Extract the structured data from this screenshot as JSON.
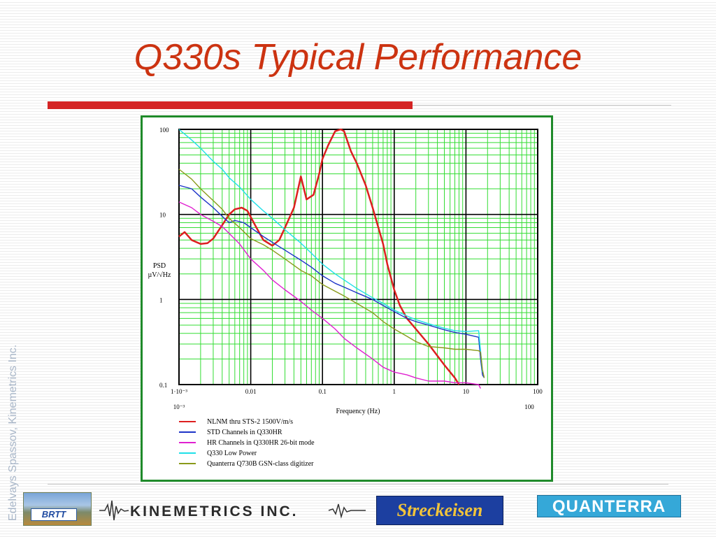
{
  "slide": {
    "title": "Q330s Typical Performance",
    "side_text": "Edelvays Spassov, Kinemetrics Inc."
  },
  "logos": {
    "brtt": "BRTT",
    "kinemetrics": "KINEMETRICS INC.",
    "streckeisen": "Streckeisen",
    "quanterra": "QUANTERRA"
  },
  "colors": {
    "title": "#cc3311",
    "frame": "#1f8a2a",
    "grid_minor": "#33dd33",
    "grid_major": "#000000"
  },
  "chart_data": {
    "type": "line",
    "xscale": "log",
    "yscale": "log",
    "xlim": [
      0.001,
      100
    ],
    "ylim": [
      0.1,
      100
    ],
    "grid": true,
    "xlabel": "Frequency (Hz)",
    "ylabel": "PSD\nµV/√Hz",
    "ytick_labels": [
      "100",
      "10",
      "1",
      "0.1"
    ],
    "xtick_labels": [
      "1·10⁻³",
      "0.01",
      "0.1",
      "1",
      "10",
      "100"
    ],
    "xtick_labels_below": [
      "10⁻³",
      "100"
    ],
    "legend_position": "bottom",
    "series": [
      {
        "name": "NLNM thru STS-2 1500V/m/s",
        "color": "#dd1f1f",
        "x": [
          0.001,
          0.0012,
          0.0015,
          0.002,
          0.0025,
          0.003,
          0.004,
          0.005,
          0.006,
          0.0075,
          0.009,
          0.012,
          0.015,
          0.02,
          0.025,
          0.03,
          0.04,
          0.05,
          0.06,
          0.075,
          0.09,
          0.1,
          0.12,
          0.15,
          0.18,
          0.2,
          0.22,
          0.25,
          0.3,
          0.4,
          0.5,
          0.7,
          0.8,
          1,
          1.2,
          1.5,
          2,
          3,
          5,
          7,
          8
        ],
        "y": [
          5.5,
          6.2,
          5.0,
          4.5,
          4.6,
          5.2,
          7.5,
          10.0,
          11.5,
          12.0,
          11.0,
          7.0,
          5.0,
          4.3,
          5.0,
          7.0,
          12.0,
          28.0,
          15.0,
          17.0,
          30.0,
          45.0,
          65.0,
          95.0,
          100.0,
          95.0,
          75.0,
          55.0,
          40.0,
          22.0,
          12.0,
          4.5,
          2.6,
          1.3,
          0.85,
          0.6,
          0.45,
          0.3,
          0.17,
          0.12,
          0.1
        ]
      },
      {
        "name": "STD Channels in Q330HR",
        "color": "#1d34c8",
        "x": [
          0.001,
          0.0015,
          0.002,
          0.003,
          0.004,
          0.005,
          0.006,
          0.008,
          0.01,
          0.015,
          0.02,
          0.03,
          0.05,
          0.07,
          0.1,
          0.15,
          0.2,
          0.3,
          0.5,
          0.7,
          1,
          1.5,
          2,
          3,
          5,
          7,
          10,
          15,
          16,
          17,
          18
        ],
        "y": [
          22,
          20,
          16,
          12,
          9.5,
          8.0,
          8.5,
          8.0,
          7.0,
          5.5,
          4.7,
          3.8,
          2.9,
          2.4,
          1.9,
          1.55,
          1.4,
          1.2,
          1.0,
          0.85,
          0.72,
          0.6,
          0.55,
          0.5,
          0.44,
          0.41,
          0.39,
          0.36,
          0.2,
          0.13,
          0.12
        ]
      },
      {
        "name": "HR Channels in Q330HR 26-bit mode",
        "color": "#e020d0",
        "x": [
          0.001,
          0.0015,
          0.002,
          0.003,
          0.004,
          0.005,
          0.007,
          0.01,
          0.015,
          0.02,
          0.03,
          0.05,
          0.07,
          0.1,
          0.15,
          0.2,
          0.3,
          0.5,
          0.7,
          1,
          1.5,
          2,
          3,
          5,
          7,
          10,
          15,
          16
        ],
        "y": [
          14,
          12,
          10,
          8.3,
          7.2,
          6.0,
          4.5,
          3.0,
          2.2,
          1.7,
          1.3,
          0.95,
          0.75,
          0.6,
          0.45,
          0.35,
          0.27,
          0.2,
          0.16,
          0.14,
          0.13,
          0.12,
          0.11,
          0.11,
          0.105,
          0.105,
          0.1,
          0.09
        ]
      },
      {
        "name": "Q330 Low Power",
        "color": "#1fe0e8",
        "x": [
          0.001,
          0.0015,
          0.002,
          0.003,
          0.004,
          0.005,
          0.007,
          0.01,
          0.015,
          0.02,
          0.03,
          0.05,
          0.07,
          0.1,
          0.15,
          0.2,
          0.3,
          0.5,
          0.7,
          1,
          1.5,
          2,
          3,
          5,
          7,
          10,
          15,
          16,
          17
        ],
        "y": [
          100,
          75,
          60,
          42,
          34,
          27,
          21,
          15,
          11,
          9.0,
          6.6,
          4.6,
          3.5,
          2.6,
          2.0,
          1.7,
          1.35,
          1.05,
          0.9,
          0.75,
          0.64,
          0.58,
          0.52,
          0.46,
          0.43,
          0.42,
          0.43,
          0.25,
          0.14
        ]
      },
      {
        "name": "Quanterra Q730B GSN-class digitizer",
        "color": "#8a9a1a",
        "x": [
          0.001,
          0.0015,
          0.002,
          0.003,
          0.004,
          0.005,
          0.007,
          0.01,
          0.015,
          0.02,
          0.03,
          0.05,
          0.07,
          0.1,
          0.15,
          0.2,
          0.3,
          0.5,
          0.7,
          1,
          1.5,
          2,
          3,
          5,
          7,
          10,
          15,
          16,
          17,
          18
        ],
        "y": [
          34,
          26,
          20,
          14.5,
          11.5,
          9.0,
          7.0,
          5.2,
          4.4,
          3.8,
          3.0,
          2.2,
          1.9,
          1.5,
          1.25,
          1.1,
          0.9,
          0.7,
          0.55,
          0.45,
          0.37,
          0.32,
          0.28,
          0.27,
          0.26,
          0.26,
          0.25,
          0.24,
          0.15,
          0.12
        ]
      }
    ]
  }
}
